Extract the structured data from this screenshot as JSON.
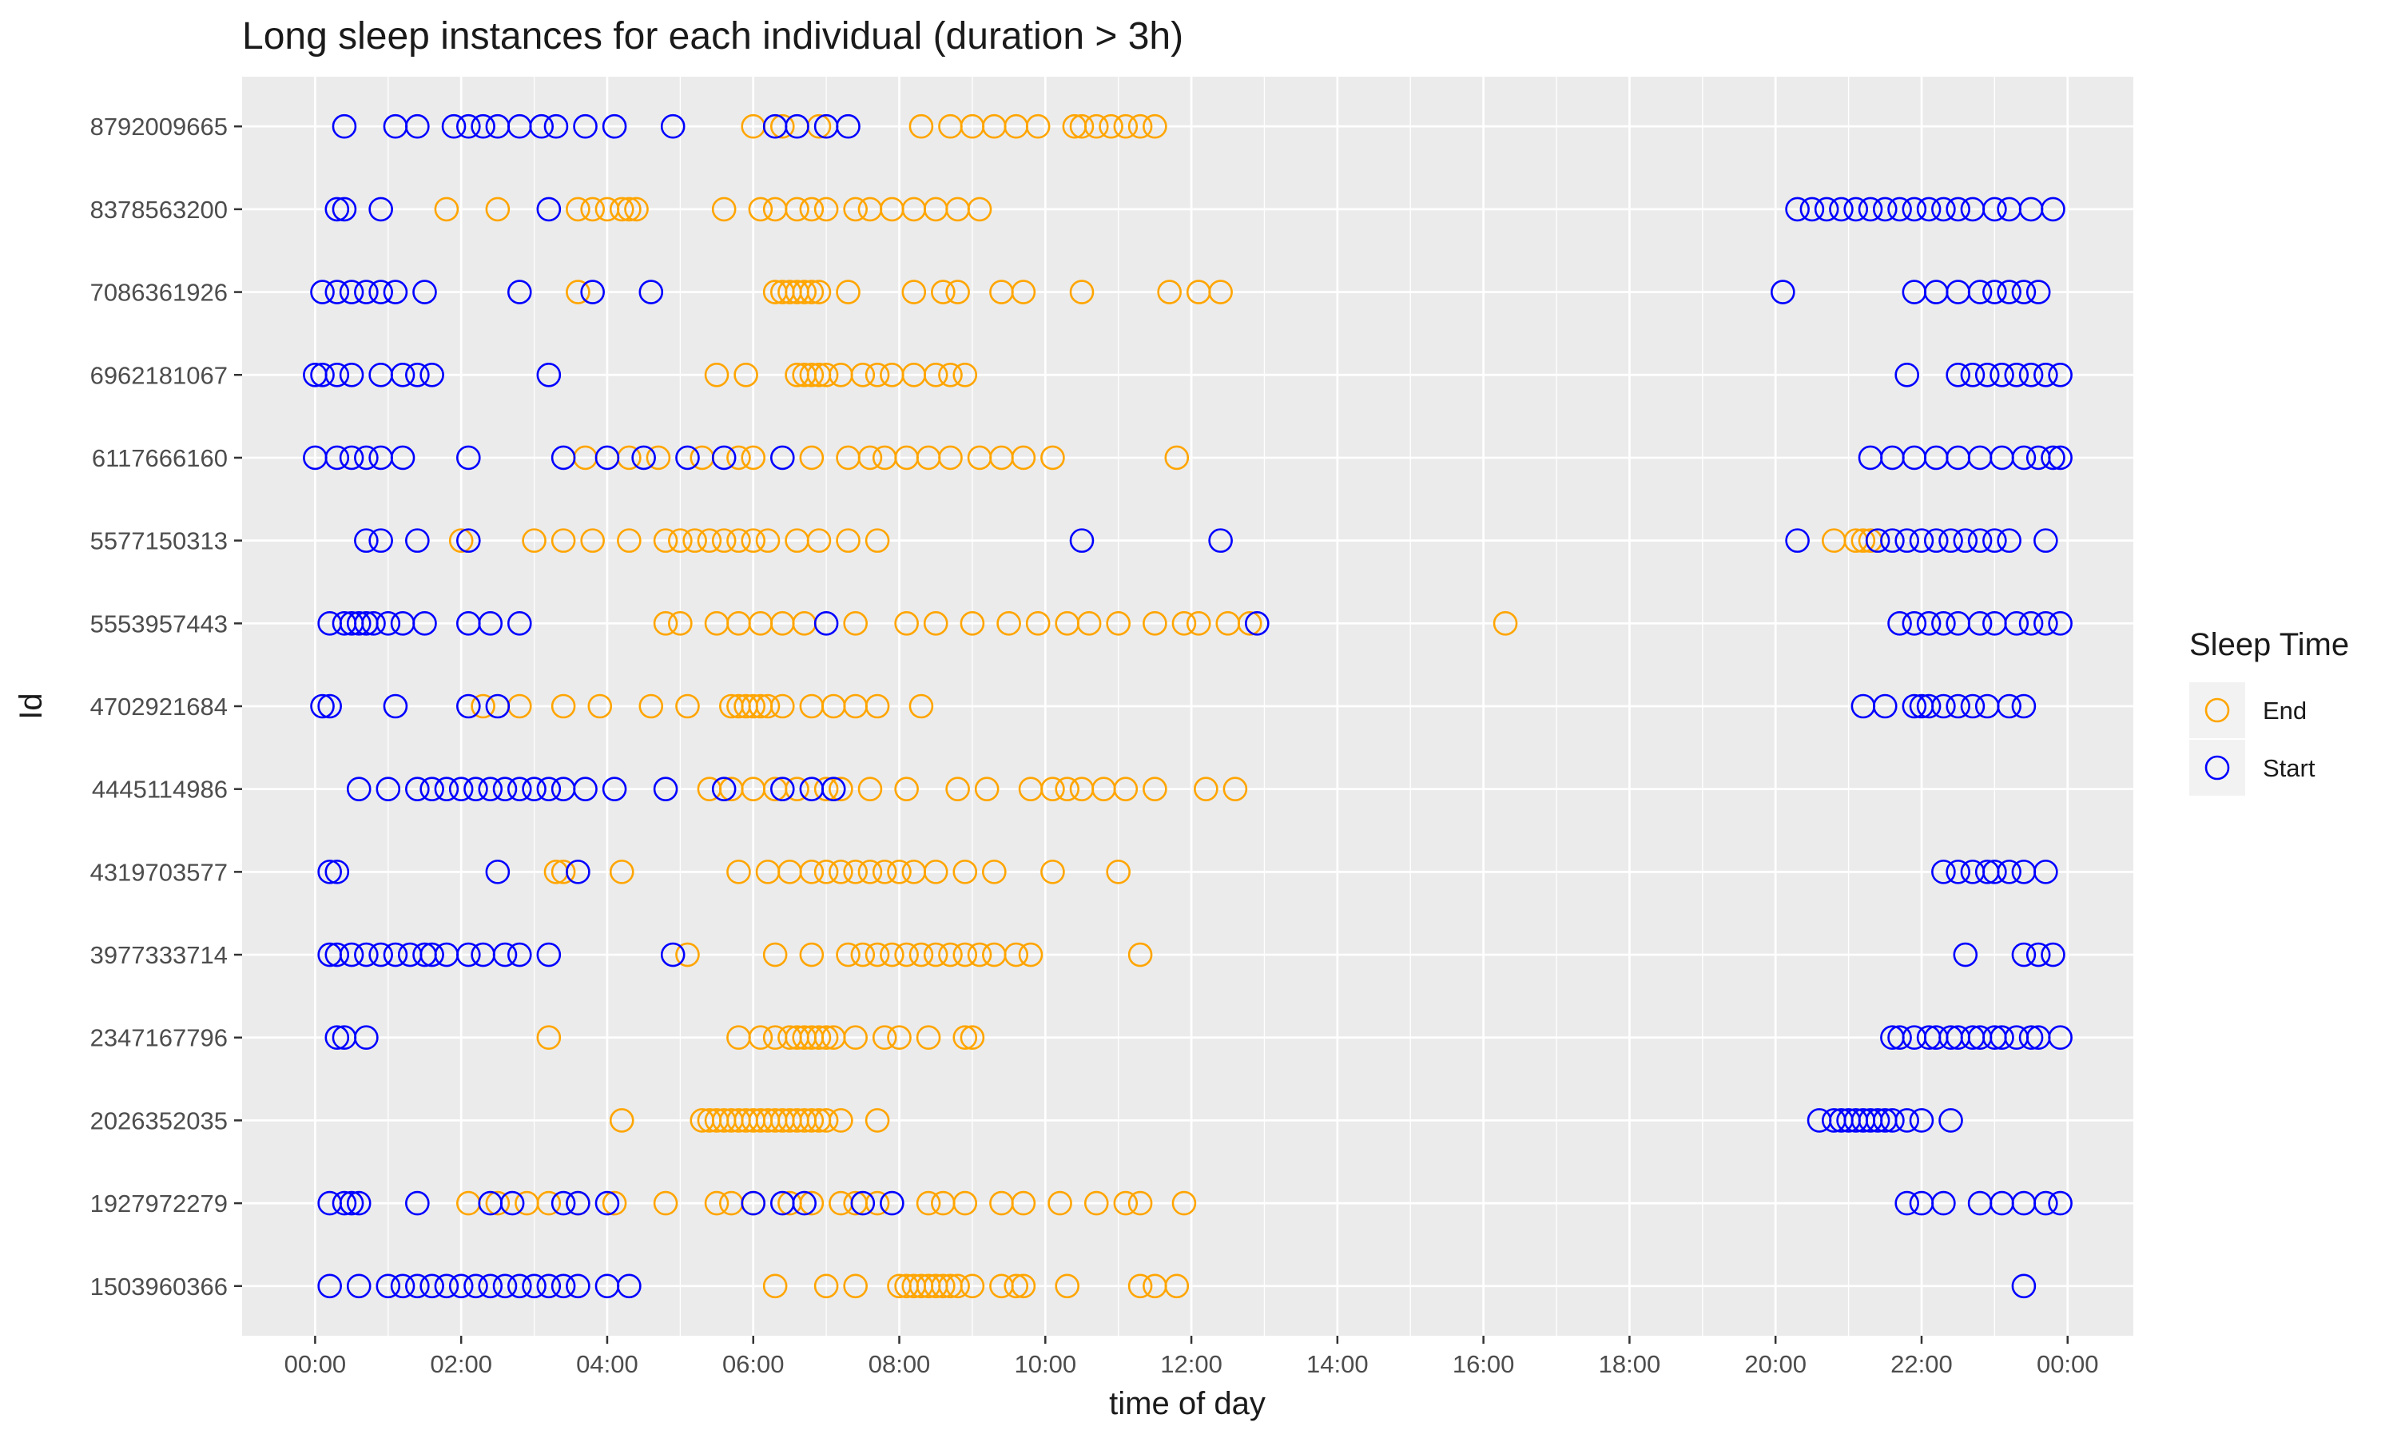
{
  "chart_data": {
    "type": "scatter",
    "title": "Long sleep instances for each individual (duration > 3h)",
    "xlabel": "time of day",
    "ylabel": "Id",
    "x_unit": "hours",
    "xlim": [
      -1,
      24.9
    ],
    "x_ticks": [
      0,
      2,
      4,
      6,
      8,
      10,
      12,
      14,
      16,
      18,
      20,
      22,
      24
    ],
    "x_tick_labels": [
      "00:00",
      "02:00",
      "04:00",
      "06:00",
      "08:00",
      "10:00",
      "12:00",
      "14:00",
      "16:00",
      "18:00",
      "20:00",
      "22:00",
      "00:00"
    ],
    "categories": [
      "1503960366",
      "1927972279",
      "2026352035",
      "2347167796",
      "3977333714",
      "4319703577",
      "4445114986",
      "4702921684",
      "5553957443",
      "5577150313",
      "6117666160",
      "6962181067",
      "7086361926",
      "8378563200",
      "8792009665"
    ],
    "grid": true,
    "marker": "open-circle",
    "legend": {
      "title": "Sleep Time",
      "position": "right",
      "entries": [
        {
          "label": "End",
          "color": "#FFA500"
        },
        {
          "label": "Start",
          "color": "#0000FF"
        }
      ]
    },
    "series": [
      {
        "name": "End",
        "color": "#FFA500",
        "values": {
          "1503960366": [
            6.3,
            7.0,
            7.4,
            8.0,
            8.1,
            8.2,
            8.3,
            8.4,
            8.5,
            8.6,
            8.7,
            8.8,
            9.0,
            9.4,
            9.6,
            9.7,
            10.3,
            11.3,
            11.5,
            11.8
          ],
          "1927972279": [
            2.1,
            2.5,
            2.9,
            3.2,
            3.6,
            4.1,
            4.8,
            5.5,
            5.7,
            6.0,
            6.5,
            6.8,
            7.2,
            7.4,
            7.7,
            8.4,
            8.6,
            8.9,
            9.4,
            9.7,
            10.2,
            10.7,
            11.1,
            11.3,
            11.9
          ],
          "2026352035": [
            4.2,
            5.3,
            5.4,
            5.5,
            5.6,
            5.7,
            5.8,
            5.9,
            6.0,
            6.1,
            6.2,
            6.3,
            6.4,
            6.5,
            6.6,
            6.7,
            6.8,
            6.9,
            7.0,
            7.2,
            7.7
          ],
          "2347167796": [
            3.2,
            5.8,
            6.1,
            6.3,
            6.5,
            6.6,
            6.7,
            6.8,
            6.9,
            7.0,
            7.1,
            7.4,
            7.8,
            8.0,
            8.4,
            8.9,
            9.0
          ],
          "3977333714": [
            5.1,
            6.3,
            6.8,
            7.3,
            7.5,
            7.7,
            7.9,
            8.1,
            8.3,
            8.5,
            8.7,
            8.9,
            9.1,
            9.3,
            9.6,
            9.8,
            11.3
          ],
          "4319703577": [
            3.3,
            3.4,
            4.2,
            5.8,
            6.2,
            6.5,
            6.8,
            7.0,
            7.2,
            7.4,
            7.6,
            7.8,
            8.0,
            8.2,
            8.5,
            8.9,
            9.3,
            10.1,
            11.0
          ],
          "4445114986": [
            5.4,
            5.7,
            6.0,
            6.3,
            6.6,
            7.0,
            7.2,
            7.6,
            8.1,
            8.8,
            9.2,
            9.8,
            10.1,
            10.3,
            10.5,
            10.8,
            11.1,
            11.5,
            12.2,
            12.6
          ],
          "4702921684": [
            2.3,
            2.8,
            3.4,
            3.9,
            4.6,
            5.1,
            5.7,
            5.8,
            5.9,
            6.0,
            6.1,
            6.2,
            6.4,
            6.8,
            7.1,
            7.4,
            7.7,
            8.3
          ],
          "5553957443": [
            4.8,
            5.0,
            5.5,
            5.8,
            6.1,
            6.4,
            6.7,
            7.4,
            8.1,
            8.5,
            9.0,
            9.5,
            9.9,
            10.3,
            10.6,
            11.0,
            11.5,
            11.9,
            12.1,
            12.5,
            12.8,
            16.3
          ],
          "5577150313": [
            2.0,
            3.0,
            3.4,
            3.8,
            4.3,
            4.8,
            5.0,
            5.2,
            5.4,
            5.6,
            5.8,
            6.0,
            6.2,
            6.6,
            6.9,
            7.3,
            7.7,
            20.8,
            21.1,
            21.2,
            21.3
          ],
          "6117666160": [
            3.7,
            4.3,
            4.7,
            5.3,
            5.8,
            6.0,
            6.8,
            7.3,
            7.6,
            7.8,
            8.1,
            8.4,
            8.7,
            9.1,
            9.4,
            9.7,
            10.1,
            11.8
          ],
          "6962181067": [
            5.5,
            5.9,
            6.6,
            6.7,
            6.8,
            6.9,
            7.0,
            7.2,
            7.5,
            7.7,
            7.9,
            8.2,
            8.5,
            8.7,
            8.9
          ],
          "7086361926": [
            3.6,
            6.3,
            6.4,
            6.5,
            6.6,
            6.7,
            6.8,
            6.9,
            7.3,
            8.2,
            8.6,
            8.8,
            9.4,
            9.7,
            10.5,
            11.7,
            12.1,
            12.4
          ],
          "8378563200": [
            1.8,
            2.5,
            3.6,
            3.8,
            4.0,
            4.2,
            4.3,
            4.4,
            5.6,
            6.1,
            6.3,
            6.6,
            6.8,
            7.0,
            7.4,
            7.6,
            7.9,
            8.2,
            8.5,
            8.8,
            9.1
          ],
          "8792009665": [
            6.0,
            6.4,
            6.9,
            8.3,
            8.7,
            9.0,
            9.3,
            9.6,
            9.9,
            10.4,
            10.5,
            10.7,
            10.9,
            11.1,
            11.3,
            11.5
          ]
        }
      },
      {
        "name": "Start",
        "color": "#0000FF",
        "values": {
          "1503960366": [
            0.2,
            0.6,
            1.0,
            1.2,
            1.4,
            1.6,
            1.8,
            2.0,
            2.2,
            2.4,
            2.6,
            2.8,
            3.0,
            3.2,
            3.4,
            3.6,
            4.0,
            4.3,
            23.4
          ],
          "1927972279": [
            0.2,
            0.4,
            0.5,
            0.6,
            1.4,
            2.4,
            2.7,
            3.4,
            3.6,
            4.0,
            6.0,
            6.4,
            6.7,
            7.5,
            7.9,
            21.8,
            22.0,
            22.3,
            22.8,
            23.1,
            23.4,
            23.7,
            23.9
          ],
          "2026352035": [
            20.6,
            20.8,
            20.9,
            21.0,
            21.1,
            21.2,
            21.3,
            21.4,
            21.5,
            21.6,
            21.8,
            22.0,
            22.4
          ],
          "2347167796": [
            0.3,
            0.4,
            0.7,
            21.6,
            21.7,
            21.9,
            22.1,
            22.2,
            22.4,
            22.5,
            22.7,
            22.8,
            23.0,
            23.1,
            23.3,
            23.5,
            23.6,
            23.9
          ],
          "3977333714": [
            0.2,
            0.3,
            0.5,
            0.7,
            0.9,
            1.1,
            1.3,
            1.5,
            1.6,
            1.8,
            2.1,
            2.3,
            2.6,
            2.8,
            3.2,
            4.9,
            22.6,
            23.4,
            23.6,
            23.8
          ],
          "4319703577": [
            0.2,
            0.3,
            2.5,
            3.6,
            22.3,
            22.5,
            22.7,
            22.9,
            23.0,
            23.2,
            23.4,
            23.7
          ],
          "4445114986": [
            0.6,
            1.0,
            1.4,
            1.6,
            1.8,
            2.0,
            2.2,
            2.4,
            2.6,
            2.8,
            3.0,
            3.2,
            3.4,
            3.7,
            4.1,
            4.8,
            5.6,
            6.4,
            6.8,
            7.1
          ],
          "4702921684": [
            0.1,
            0.2,
            1.1,
            2.1,
            2.5,
            21.2,
            21.5,
            21.9,
            22.0,
            22.1,
            22.3,
            22.5,
            22.7,
            22.9,
            23.2,
            23.4
          ],
          "5553957443": [
            0.2,
            0.4,
            0.5,
            0.6,
            0.7,
            0.8,
            1.0,
            1.2,
            1.5,
            2.1,
            2.4,
            2.8,
            7.0,
            12.9,
            21.7,
            21.9,
            22.1,
            22.3,
            22.5,
            22.8,
            23.0,
            23.3,
            23.5,
            23.7,
            23.9
          ],
          "5577150313": [
            0.7,
            0.9,
            1.4,
            2.1,
            10.5,
            12.4,
            20.3,
            21.4,
            21.6,
            21.8,
            22.0,
            22.2,
            22.4,
            22.6,
            22.8,
            23.0,
            23.2,
            23.7
          ],
          "6117666160": [
            0.0,
            0.3,
            0.5,
            0.7,
            0.9,
            1.2,
            2.1,
            3.4,
            4.0,
            4.5,
            5.1,
            5.6,
            6.4,
            21.3,
            21.6,
            21.9,
            22.2,
            22.5,
            22.8,
            23.1,
            23.4,
            23.6,
            23.8,
            23.9
          ],
          "6962181067": [
            0.0,
            0.1,
            0.3,
            0.5,
            0.9,
            1.2,
            1.4,
            1.6,
            3.2,
            21.8,
            22.5,
            22.7,
            22.9,
            23.1,
            23.3,
            23.5,
            23.7,
            23.9
          ],
          "7086361926": [
            0.1,
            0.3,
            0.5,
            0.7,
            0.9,
            1.1,
            1.5,
            2.8,
            3.8,
            4.6,
            20.1,
            21.9,
            22.2,
            22.5,
            22.8,
            23.0,
            23.2,
            23.4,
            23.6
          ],
          "8378563200": [
            0.3,
            0.4,
            0.9,
            3.2,
            20.3,
            20.5,
            20.7,
            20.9,
            21.1,
            21.3,
            21.5,
            21.7,
            21.9,
            22.1,
            22.3,
            22.5,
            22.7,
            23.0,
            23.2,
            23.5,
            23.8
          ],
          "8792009665": [
            0.4,
            1.1,
            1.4,
            1.9,
            2.1,
            2.3,
            2.5,
            2.8,
            3.1,
            3.3,
            3.7,
            4.1,
            4.9,
            6.3,
            6.6,
            7.0,
            7.3
          ]
        }
      }
    ]
  }
}
